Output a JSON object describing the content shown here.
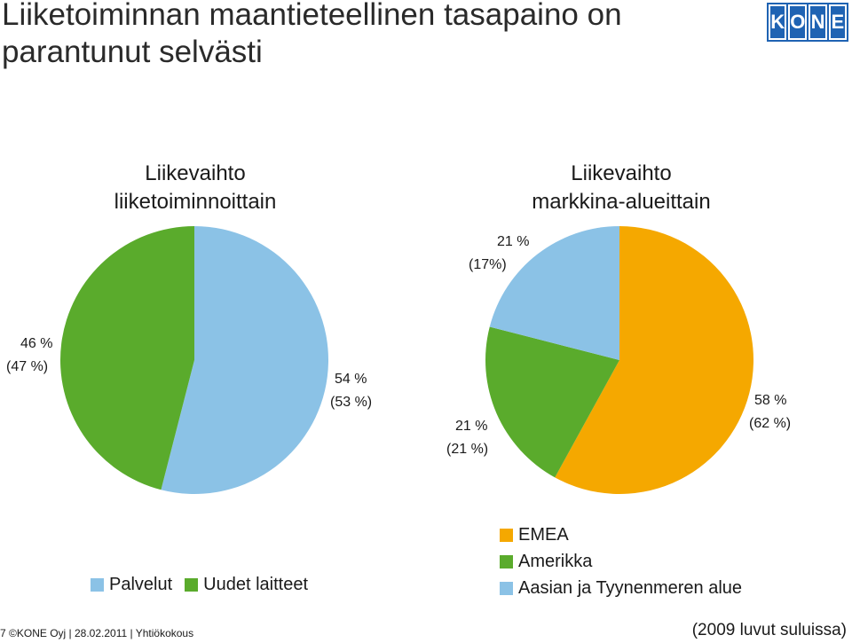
{
  "slide": {
    "title_line1": "Liiketoiminnan maantieteellinen tasapaino on",
    "title_line2": "parantunut selvästi"
  },
  "logo": {
    "letters": [
      "K",
      "O",
      "N",
      "E"
    ],
    "color": "#1f63b3"
  },
  "chart_data": [
    {
      "type": "pie",
      "title_line1": "Liikevaihto",
      "title_line2": "liiketoiminnoittain",
      "slices": [
        {
          "name": "Palvelut",
          "value": 54,
          "label": "54 %",
          "prev_label": "(53 %)",
          "color": "#8bc2e6"
        },
        {
          "name": "Uudet laitteet",
          "value": 46,
          "label": "46 %",
          "prev_label": "(47 %)",
          "color": "#5aab2c"
        }
      ],
      "legend_position": "bottom"
    },
    {
      "type": "pie",
      "title_line1": "Liikevaihto",
      "title_line2": "markkina-alueittain",
      "slices": [
        {
          "name": "EMEA",
          "value": 58,
          "label": "58 %",
          "prev_label": "(62 %)",
          "color": "#f5a800"
        },
        {
          "name": "Amerikka",
          "value": 21,
          "label": "21 %",
          "prev_label": "(21 %)",
          "color": "#5aab2c"
        },
        {
          "name": "Aasian ja Tyynenmeren alue",
          "value": 21,
          "label": "21 %",
          "prev_label": "(17%)",
          "color": "#8bc2e6"
        }
      ],
      "legend_position": "bottom"
    }
  ],
  "footer": {
    "left_text": "7 ©KONE Oyj | 28.02.2011 | Yhtiökokous",
    "right_text": "(2009 luvut suluissa)"
  }
}
